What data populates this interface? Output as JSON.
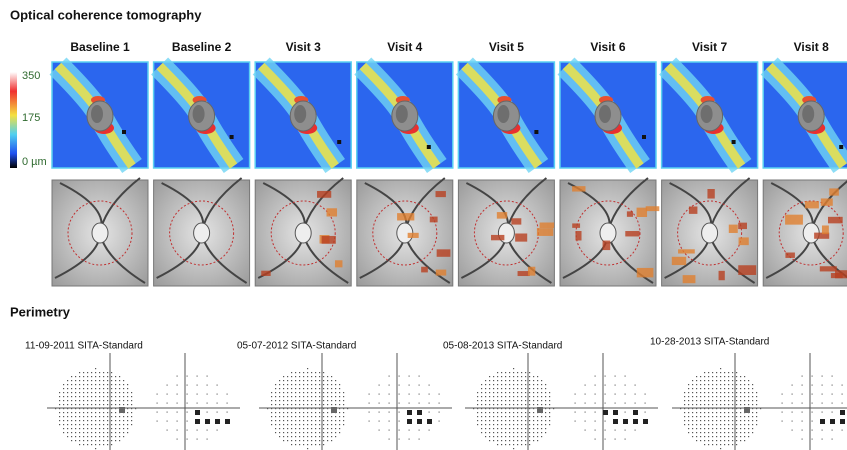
{
  "oct": {
    "title": "Optical coherence tomography",
    "visits": [
      "Baseline 1",
      "Baseline 2",
      "Visit 3",
      "Visit 4",
      "Visit 5",
      "Visit 6",
      "Visit 7",
      "Visit 8"
    ],
    "scale": {
      "max": "350",
      "mid": "175",
      "min": "0 µm"
    }
  },
  "perimetry": {
    "title": "Perimetry",
    "tests": [
      "11-09-2011 SITA-Standard",
      "05-07-2012 SITA-Standard",
      "05-08-2013 SITA-Standard",
      "10-28-2013 SITA-Standard"
    ]
  }
}
